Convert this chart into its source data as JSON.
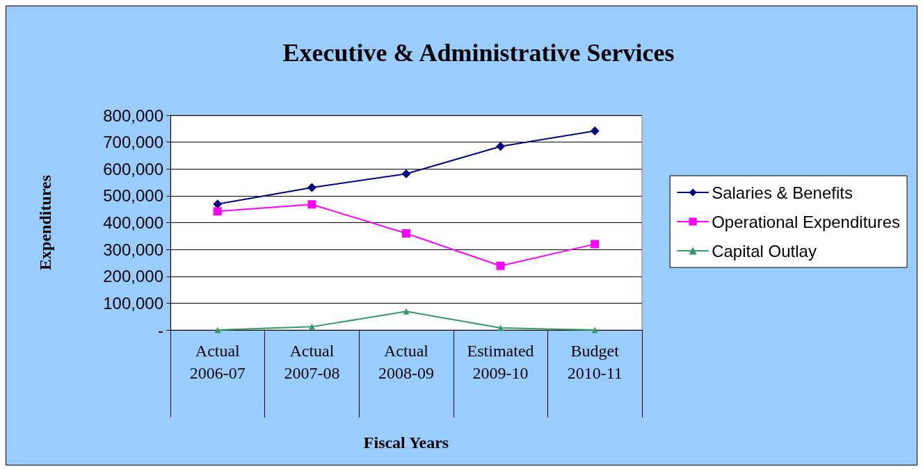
{
  "chart_data": {
    "type": "line",
    "title": "Executive & Administrative Services",
    "xlabel": "Fiscal Years",
    "ylabel": "Expenditures",
    "categories": [
      "Actual\n\n2006-07",
      "Actual\n\n2007-08",
      "Actual\n\n2008-09",
      "Estimated\n\n2009-10",
      "Budget\n\n2010-11"
    ],
    "series": [
      {
        "name": "Salaries & Benefits",
        "color": "#000080",
        "marker": "diamond",
        "values": [
          469000,
          531000,
          582000,
          684000,
          742000
        ]
      },
      {
        "name": "Operational Expenditures",
        "color": "#ff00ff",
        "marker": "square",
        "values": [
          442000,
          468000,
          360000,
          239000,
          320000
        ]
      },
      {
        "name": "Capital Outlay",
        "color": "#339966",
        "marker": "triangle",
        "values": [
          0,
          12000,
          69000,
          8000,
          0
        ]
      }
    ],
    "ylim": [
      0,
      800000
    ],
    "yticks": [
      {
        "value": 0,
        "label": "-"
      },
      {
        "value": 100000,
        "label": "100,000"
      },
      {
        "value": 200000,
        "label": "200,000"
      },
      {
        "value": 300000,
        "label": "300,000"
      },
      {
        "value": 400000,
        "label": "400,000"
      },
      {
        "value": 500000,
        "label": "500,000"
      },
      {
        "value": 600000,
        "label": "600,000"
      },
      {
        "value": 700000,
        "label": "700,000"
      },
      {
        "value": 800000,
        "label": "800,000"
      }
    ],
    "grid": "y",
    "legend": "right",
    "line_style": "solid"
  }
}
